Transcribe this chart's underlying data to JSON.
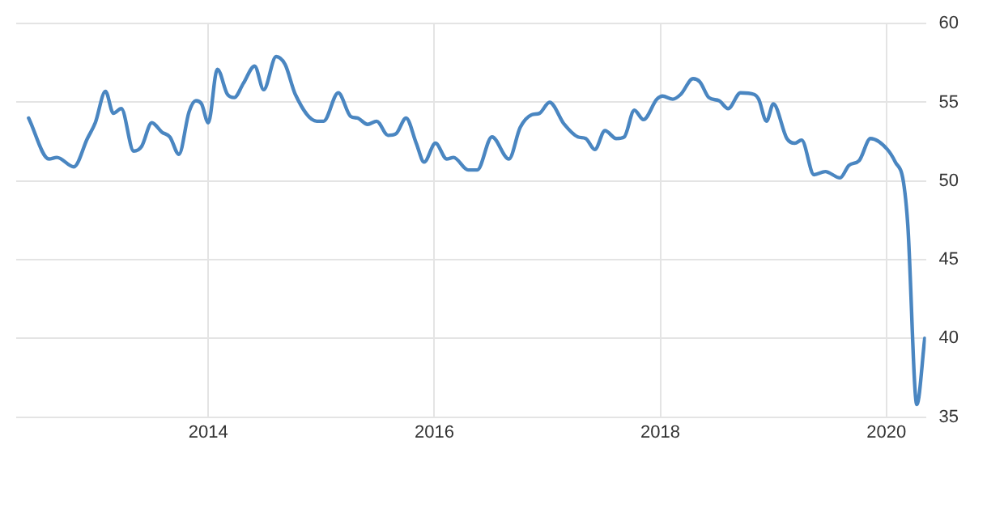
{
  "chart_data": {
    "type": "line",
    "x": [
      2012.41,
      2012.59,
      2012.66,
      2012.81,
      2012.93,
      2013.0,
      2013.09,
      2013.16,
      2013.23,
      2013.34,
      2013.41,
      2013.5,
      2013.59,
      2013.66,
      2013.74,
      2013.83,
      2013.89,
      2013.94,
      2014.0,
      2014.08,
      2014.17,
      2014.23,
      2014.31,
      2014.41,
      2014.49,
      2014.6,
      2014.68,
      2014.77,
      2014.96,
      2015.02,
      2015.15,
      2015.26,
      2015.32,
      2015.41,
      2015.49,
      2015.59,
      2015.66,
      2015.75,
      2015.84,
      2015.91,
      2016.01,
      2016.11,
      2016.17,
      2016.3,
      2016.38,
      2016.51,
      2016.66,
      2016.76,
      2016.86,
      2016.93,
      2017.02,
      2017.15,
      2017.27,
      2017.34,
      2017.42,
      2017.51,
      2017.61,
      2017.68,
      2017.77,
      2017.85,
      2017.97,
      2018.02,
      2018.11,
      2018.18,
      2018.29,
      2018.35,
      2018.43,
      2018.52,
      2018.6,
      2018.71,
      2018.83,
      2018.87,
      2018.94,
      2019.0,
      2019.12,
      2019.19,
      2019.25,
      2019.36,
      2019.46,
      2019.59,
      2019.67,
      2019.76,
      2019.86,
      2020.01,
      2020.08,
      2020.15,
      2020.19,
      2020.27,
      2020.34
    ],
    "series": [
      {
        "color": "#4a86c1",
        "values": [
          54.0,
          51.4,
          51.5,
          50.9,
          52.7,
          53.7,
          55.7,
          54.3,
          54.6,
          51.9,
          52.2,
          53.7,
          53.1,
          52.8,
          51.7,
          54.4,
          55.1,
          54.9,
          53.7,
          57.1,
          55.5,
          55.3,
          56.2,
          57.3,
          55.8,
          57.9,
          57.4,
          55.5,
          53.8,
          53.8,
          55.6,
          54.1,
          54.0,
          53.6,
          53.8,
          52.9,
          53.0,
          54.0,
          52.4,
          51.2,
          52.4,
          51.4,
          51.5,
          50.7,
          50.7,
          52.8,
          51.4,
          53.4,
          54.2,
          54.3,
          55.0,
          53.6,
          52.8,
          52.7,
          52.0,
          53.2,
          52.7,
          52.8,
          54.5,
          53.9,
          55.2,
          55.4,
          55.2,
          55.5,
          56.5,
          56.3,
          55.3,
          55.1,
          54.6,
          55.6,
          55.5,
          55.2,
          53.8,
          54.9,
          52.7,
          52.4,
          52.6,
          50.4,
          50.6,
          50.2,
          51.0,
          51.3,
          52.7,
          52.0,
          51.2,
          50.0,
          47.2,
          35.8,
          40.0
        ]
      }
    ],
    "xlim": [
      2012.3,
      2020.35
    ],
    "xticks": [
      2014,
      2016,
      2018,
      2020
    ],
    "ylim": [
      35,
      60
    ],
    "yticks": [
      35,
      40,
      45,
      50,
      55,
      60
    ],
    "grid": true,
    "legend": false,
    "marker": "none",
    "line_style": "solid"
  }
}
